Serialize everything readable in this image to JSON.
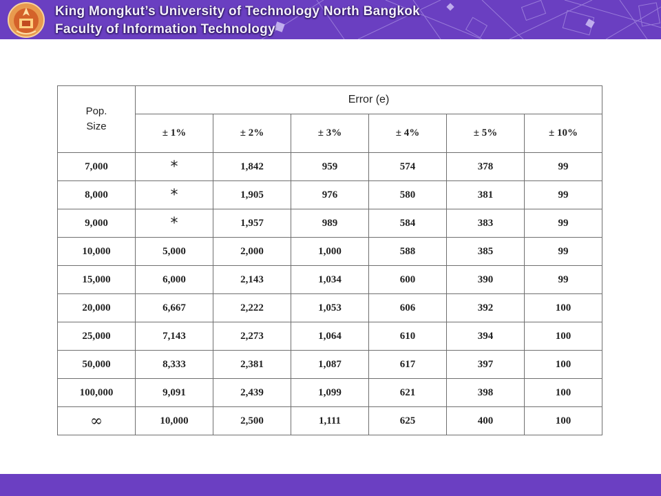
{
  "header": {
    "university": "King Mongkut’s University of Technology North Bangkok",
    "faculty": "Faculty of Information Technology",
    "logo_icon": "university-seal-icon",
    "bg_color": "#6a3fc1"
  },
  "table": {
    "pop_header_line1": "Pop.",
    "pop_header_line2": "Size",
    "error_header": "Error (e)",
    "error_levels": [
      "± 1%",
      "± 2%",
      "± 3%",
      "± 4%",
      "± 5%",
      "± 10%"
    ],
    "rows": [
      {
        "pop": "7,000",
        "values": [
          "*",
          "1,842",
          "959",
          "574",
          "378",
          "99"
        ]
      },
      {
        "pop": "8,000",
        "values": [
          "*",
          "1,905",
          "976",
          "580",
          "381",
          "99"
        ]
      },
      {
        "pop": "9,000",
        "values": [
          "*",
          "1,957",
          "989",
          "584",
          "383",
          "99"
        ]
      },
      {
        "pop": "10,000",
        "values": [
          "5,000",
          "2,000",
          "1,000",
          "588",
          "385",
          "99"
        ]
      },
      {
        "pop": "15,000",
        "values": [
          "6,000",
          "2,143",
          "1,034",
          "600",
          "390",
          "99"
        ]
      },
      {
        "pop": "20,000",
        "values": [
          "6,667",
          "2,222",
          "1,053",
          "606",
          "392",
          "100"
        ]
      },
      {
        "pop": "25,000",
        "values": [
          "7,143",
          "2,273",
          "1,064",
          "610",
          "394",
          "100"
        ]
      },
      {
        "pop": "50,000",
        "values": [
          "8,333",
          "2,381",
          "1,087",
          "617",
          "397",
          "100"
        ]
      },
      {
        "pop": "100,000",
        "values": [
          "9,091",
          "2,439",
          "1,099",
          "621",
          "398",
          "100"
        ]
      },
      {
        "pop": "∞",
        "values": [
          "10,000",
          "2,500",
          "1,111",
          "625",
          "400",
          "100"
        ]
      }
    ]
  },
  "footer": {
    "bg_color": "#6b3fc2"
  }
}
